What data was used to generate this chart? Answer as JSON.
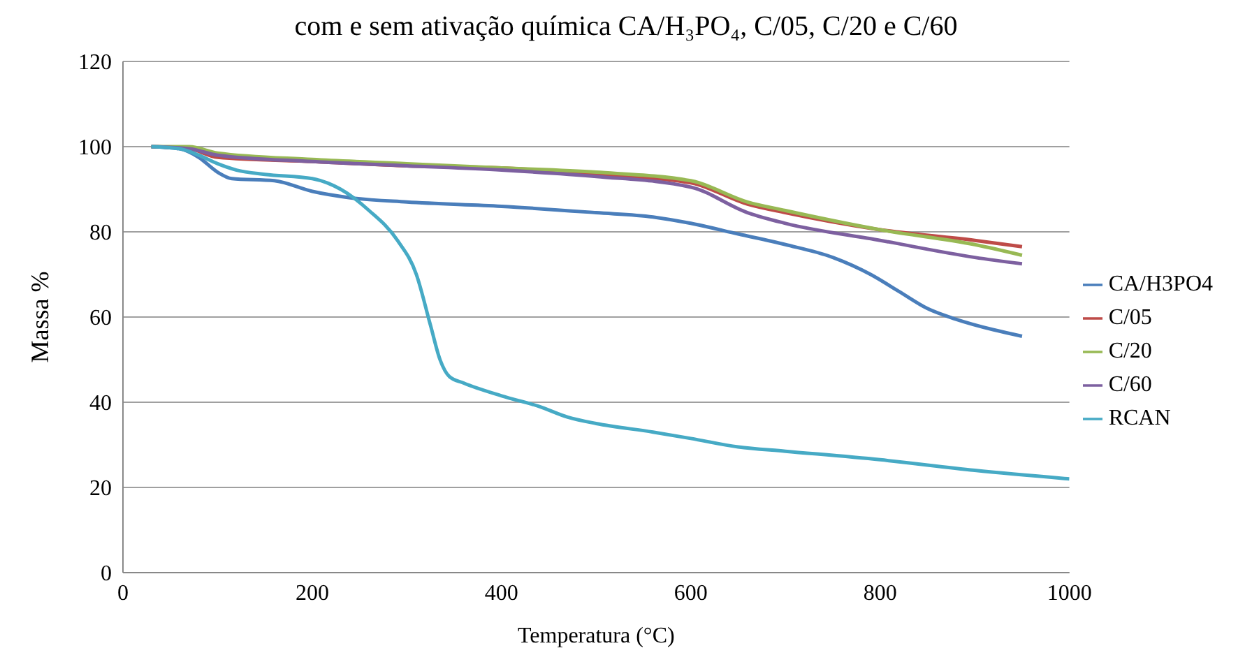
{
  "chart_data": {
    "type": "line",
    "title": "com e sem ativação química CA/H₃PO₄, C/05, C/20 e C/60",
    "xlabel": "Temperatura (°C)",
    "ylabel": "Massa  %",
    "xlim": [
      0,
      1000
    ],
    "xticks": [
      0,
      200,
      400,
      600,
      800,
      1000
    ],
    "ylim": [
      0,
      120
    ],
    "yticks": [
      0,
      20,
      40,
      60,
      80,
      100,
      120
    ],
    "grid": "y",
    "legend": "right",
    "marker": "none",
    "line_style": "solid",
    "series": [
      {
        "name": "CA/H3PO4",
        "color": "#4a7ebb",
        "x": [
          30,
          60,
          80,
          100,
          115,
          160,
          200,
          240,
          300,
          400,
          500,
          560,
          600,
          650,
          700,
          750,
          790,
          820,
          850,
          880,
          920,
          950
        ],
        "values": [
          100,
          99.5,
          97.5,
          94,
          92.5,
          92,
          89.5,
          88,
          87,
          86,
          84.5,
          83.5,
          82,
          79.5,
          77,
          74,
          70,
          66,
          62,
          59.5,
          57,
          55.5
        ]
      },
      {
        "name": "C/05",
        "color": "#be4b48",
        "x": [
          30,
          70,
          100,
          200,
          300,
          400,
          500,
          600,
          660,
          700,
          800,
          900,
          950
        ],
        "values": [
          100,
          99.5,
          97.5,
          96.5,
          95.5,
          95,
          93.5,
          91.5,
          86.5,
          84.5,
          80.5,
          78,
          76.5
        ]
      },
      {
        "name": "C/20",
        "color": "#98b954",
        "x": [
          30,
          70,
          100,
          200,
          300,
          400,
          500,
          600,
          660,
          700,
          800,
          900,
          950
        ],
        "values": [
          100,
          100,
          98.5,
          97,
          96,
          95,
          94,
          92,
          87,
          85,
          80.5,
          77,
          74.5
        ]
      },
      {
        "name": "C/60",
        "color": "#7d60a0",
        "x": [
          30,
          70,
          100,
          200,
          300,
          400,
          500,
          600,
          660,
          700,
          800,
          900,
          950
        ],
        "values": [
          100,
          99.5,
          98,
          96.5,
          95.5,
          94.5,
          93,
          90.5,
          84.5,
          82,
          78,
          74,
          72.5
        ]
      },
      {
        "name": "RCAN",
        "color": "#46aac5",
        "x": [
          30,
          60,
          80,
          100,
          120,
          150,
          200,
          230,
          260,
          290,
          310,
          325,
          335,
          345,
          360,
          400,
          440,
          470,
          500,
          560,
          600,
          650,
          700,
          800,
          900,
          1000
        ],
        "values": [
          100,
          99.5,
          98,
          96,
          94.5,
          93.5,
          92.5,
          90,
          85,
          78,
          70,
          58,
          50,
          46,
          44.5,
          41.5,
          39,
          36.5,
          35,
          33,
          31.5,
          29.5,
          28.5,
          26.5,
          24,
          22
        ]
      }
    ]
  }
}
